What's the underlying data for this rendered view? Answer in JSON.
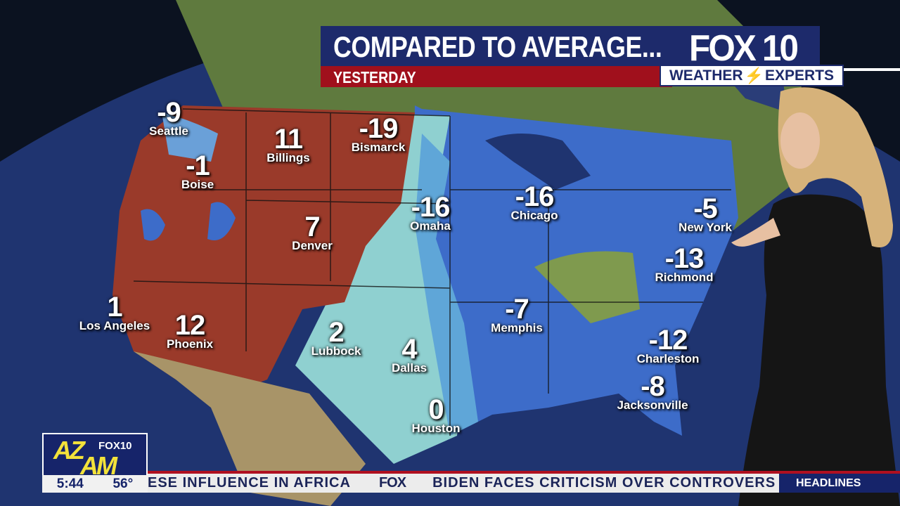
{
  "header": {
    "title": "COMPARED TO AVERAGE...",
    "subtitle": "YESTERDAY",
    "brand": "FOX 10",
    "badge_left": "WEATHER",
    "badge_right": "EXPERTS"
  },
  "map": {
    "description_units": "degrees vs average",
    "colors": {
      "above": "#9a3a2a",
      "below": "#3d6cc9",
      "near": "#9fd3d0"
    },
    "cities": [
      {
        "name": "Seattle",
        "value": "-9"
      },
      {
        "name": "Billings",
        "value": "11"
      },
      {
        "name": "Bismarck",
        "value": "-19"
      },
      {
        "name": "Boise",
        "value": "-1"
      },
      {
        "name": "Denver",
        "value": "7"
      },
      {
        "name": "Omaha",
        "value": "-16"
      },
      {
        "name": "Chicago",
        "value": "-16"
      },
      {
        "name": "New York",
        "value": "-5"
      },
      {
        "name": "Richmond",
        "value": "-13"
      },
      {
        "name": "Los Angeles",
        "value": "1"
      },
      {
        "name": "Phoenix",
        "value": "12"
      },
      {
        "name": "Lubbock",
        "value": "2"
      },
      {
        "name": "Dallas",
        "value": "4"
      },
      {
        "name": "Memphis",
        "value": "-7"
      },
      {
        "name": "Charleston",
        "value": "-12"
      },
      {
        "name": "Jacksonville",
        "value": "-8"
      },
      {
        "name": "Houston",
        "value": "0"
      }
    ]
  },
  "show": {
    "logo_top": "AZ",
    "logo_bottom": "AM",
    "logo_station": "FOX10",
    "time": "5:44",
    "temp": "56°"
  },
  "ticker": {
    "items": [
      "ESE INFLUENCE IN AFRICA",
      "FOX",
      "BIDEN FACES CRITICISM OVER CONTROVERS"
    ],
    "section": "HEADLINES"
  }
}
